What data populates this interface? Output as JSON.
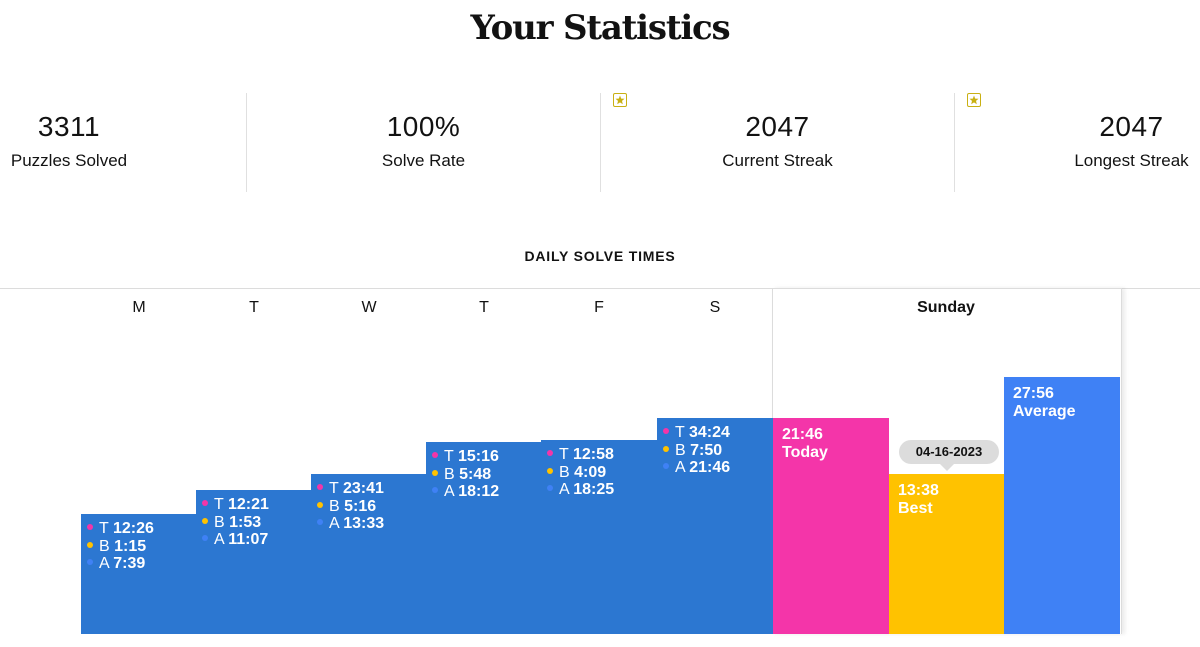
{
  "title": "Your Statistics",
  "stats": [
    {
      "value": "3311",
      "label": "Puzzles Solved",
      "starred": false
    },
    {
      "value": "100%",
      "label": "Solve Rate",
      "starred": false
    },
    {
      "value": "2047",
      "label": "Current Streak",
      "starred": true
    },
    {
      "value": "2047",
      "label": "Longest Streak",
      "starred": true
    }
  ],
  "icons": {
    "streak_badge": "star-icon"
  },
  "colors": {
    "weekday_bar": "#2c77d1",
    "today": "#f435a9",
    "best": "#ffc200",
    "average": "#3f81f5",
    "dot_today": "#f435a9",
    "dot_best": "#ffc200",
    "dot_average": "#3f81f5"
  },
  "daily": {
    "section_title": "DAILY SOLVE TIMES",
    "days": [
      {
        "label": "M",
        "lines": [
          {
            "key": "T",
            "time": "12:26"
          },
          {
            "key": "B",
            "time": "1:15"
          },
          {
            "key": "A",
            "time": "7:39"
          }
        ]
      },
      {
        "label": "T",
        "lines": [
          {
            "key": "T",
            "time": "12:21"
          },
          {
            "key": "B",
            "time": "1:53"
          },
          {
            "key": "A",
            "time": "11:07"
          }
        ]
      },
      {
        "label": "W",
        "lines": [
          {
            "key": "T",
            "time": "23:41"
          },
          {
            "key": "B",
            "time": "5:16"
          },
          {
            "key": "A",
            "time": "13:33"
          }
        ]
      },
      {
        "label": "T",
        "lines": [
          {
            "key": "T",
            "time": "15:16"
          },
          {
            "key": "B",
            "time": "5:48"
          },
          {
            "key": "A",
            "time": "18:12"
          }
        ]
      },
      {
        "label": "F",
        "lines": [
          {
            "key": "T",
            "time": "12:58"
          },
          {
            "key": "B",
            "time": "4:09"
          },
          {
            "key": "A",
            "time": "18:25"
          }
        ]
      },
      {
        "label": "S",
        "lines": [
          {
            "key": "T",
            "time": "34:24"
          },
          {
            "key": "B",
            "time": "7:50"
          },
          {
            "key": "A",
            "time": "21:46"
          }
        ]
      }
    ],
    "sunday": {
      "label": "Sunday",
      "today": {
        "time": "21:46",
        "caption": "Today"
      },
      "best": {
        "time": "13:38",
        "caption": "Best",
        "date": "04-16-2023"
      },
      "average": {
        "time": "27:56",
        "caption": "Average"
      }
    }
  }
}
